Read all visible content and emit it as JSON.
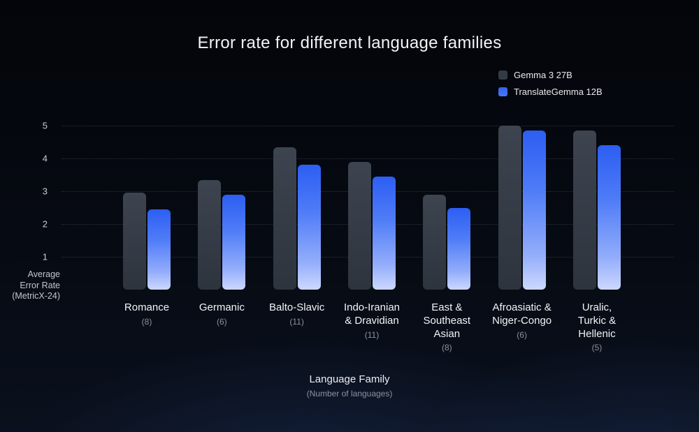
{
  "chart_data": {
    "type": "bar",
    "title": "Error rate for different language families",
    "categories": [
      {
        "label": "Romance",
        "lines": [
          "Romance"
        ],
        "count": "(8)"
      },
      {
        "label": "Germanic",
        "lines": [
          "Germanic"
        ],
        "count": "(6)"
      },
      {
        "label": "Balto-Slavic",
        "lines": [
          "Balto-Slavic"
        ],
        "count": "(11)"
      },
      {
        "label": "Indo-Iranian & Dravidian",
        "lines": [
          "Indo-Iranian",
          "& Dravidian"
        ],
        "count": "(11)"
      },
      {
        "label": "East & Southeast Asian",
        "lines": [
          "East &",
          "Southeast",
          "Asian"
        ],
        "count": "(8)"
      },
      {
        "label": "Afroasiatic & Niger-Congo",
        "lines": [
          "Afroasiatic &",
          "Niger-Congo"
        ],
        "count": "(6)"
      },
      {
        "label": "Uralic, Turkic & Hellenic",
        "lines": [
          "Uralic,",
          "Turkic &",
          "Hellenic"
        ],
        "count": "(5)"
      }
    ],
    "series": [
      {
        "name": "Gemma 3 27B",
        "color": "#343b45",
        "values": [
          2.95,
          3.35,
          4.35,
          3.9,
          2.9,
          5.0,
          4.85
        ]
      },
      {
        "name": "TranslateGemma 12B",
        "color": "#2c5ef2",
        "values": [
          2.45,
          2.9,
          3.8,
          3.45,
          2.5,
          4.85,
          4.4
        ]
      }
    ],
    "y_ticks": [
      1,
      2,
      3,
      4,
      5
    ],
    "ylim": [
      0,
      5.4
    ],
    "ylabel_lines": [
      "Average",
      "Error Rate",
      "(MetricX-24)"
    ],
    "xlabel": "Language Family",
    "xlabel_sub": "(Number of languages)",
    "grid": "dotted-horizontal",
    "legend_position": "top-right",
    "colors": {
      "background": "#05080f",
      "gemma_bar": "#343b45",
      "translate_bar_top": "#2c5ef2",
      "translate_bar_bottom": "#ccd8ff",
      "text_primary": "#f2f4f7",
      "text_secondary": "#8d939c"
    }
  }
}
